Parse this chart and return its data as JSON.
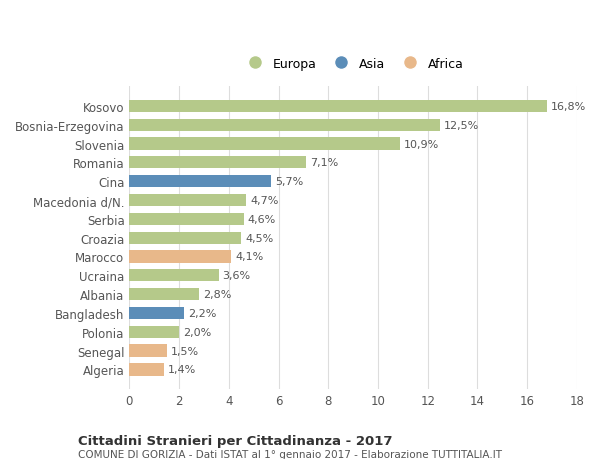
{
  "categories": [
    "Kosovo",
    "Bosnia-Erzegovina",
    "Slovenia",
    "Romania",
    "Cina",
    "Macedonia d/N.",
    "Serbia",
    "Croazia",
    "Marocco",
    "Ucraina",
    "Albania",
    "Bangladesh",
    "Polonia",
    "Senegal",
    "Algeria"
  ],
  "values": [
    16.8,
    12.5,
    10.9,
    7.1,
    5.7,
    4.7,
    4.6,
    4.5,
    4.1,
    3.6,
    2.8,
    2.2,
    2.0,
    1.5,
    1.4
  ],
  "labels": [
    "16,8%",
    "12,5%",
    "10,9%",
    "7,1%",
    "5,7%",
    "4,7%",
    "4,6%",
    "4,5%",
    "4,1%",
    "3,6%",
    "2,8%",
    "2,2%",
    "2,0%",
    "1,5%",
    "1,4%"
  ],
  "continents": [
    "Europa",
    "Europa",
    "Europa",
    "Europa",
    "Asia",
    "Europa",
    "Europa",
    "Europa",
    "Africa",
    "Europa",
    "Europa",
    "Asia",
    "Europa",
    "Africa",
    "Africa"
  ],
  "colors": {
    "Europa": "#b5c98a",
    "Asia": "#5b8db8",
    "Africa": "#e8b88a"
  },
  "legend_labels": [
    "Europa",
    "Asia",
    "Africa"
  ],
  "title": "Cittadini Stranieri per Cittadinanza - 2017",
  "subtitle": "COMUNE DI GORIZIA - Dati ISTAT al 1° gennaio 2017 - Elaborazione TUTTITALIA.IT",
  "xlim": [
    0,
    18
  ],
  "xticks": [
    0,
    2,
    4,
    6,
    8,
    10,
    12,
    14,
    16,
    18
  ],
  "bg_color": "#ffffff",
  "grid_color": "#dddddd"
}
